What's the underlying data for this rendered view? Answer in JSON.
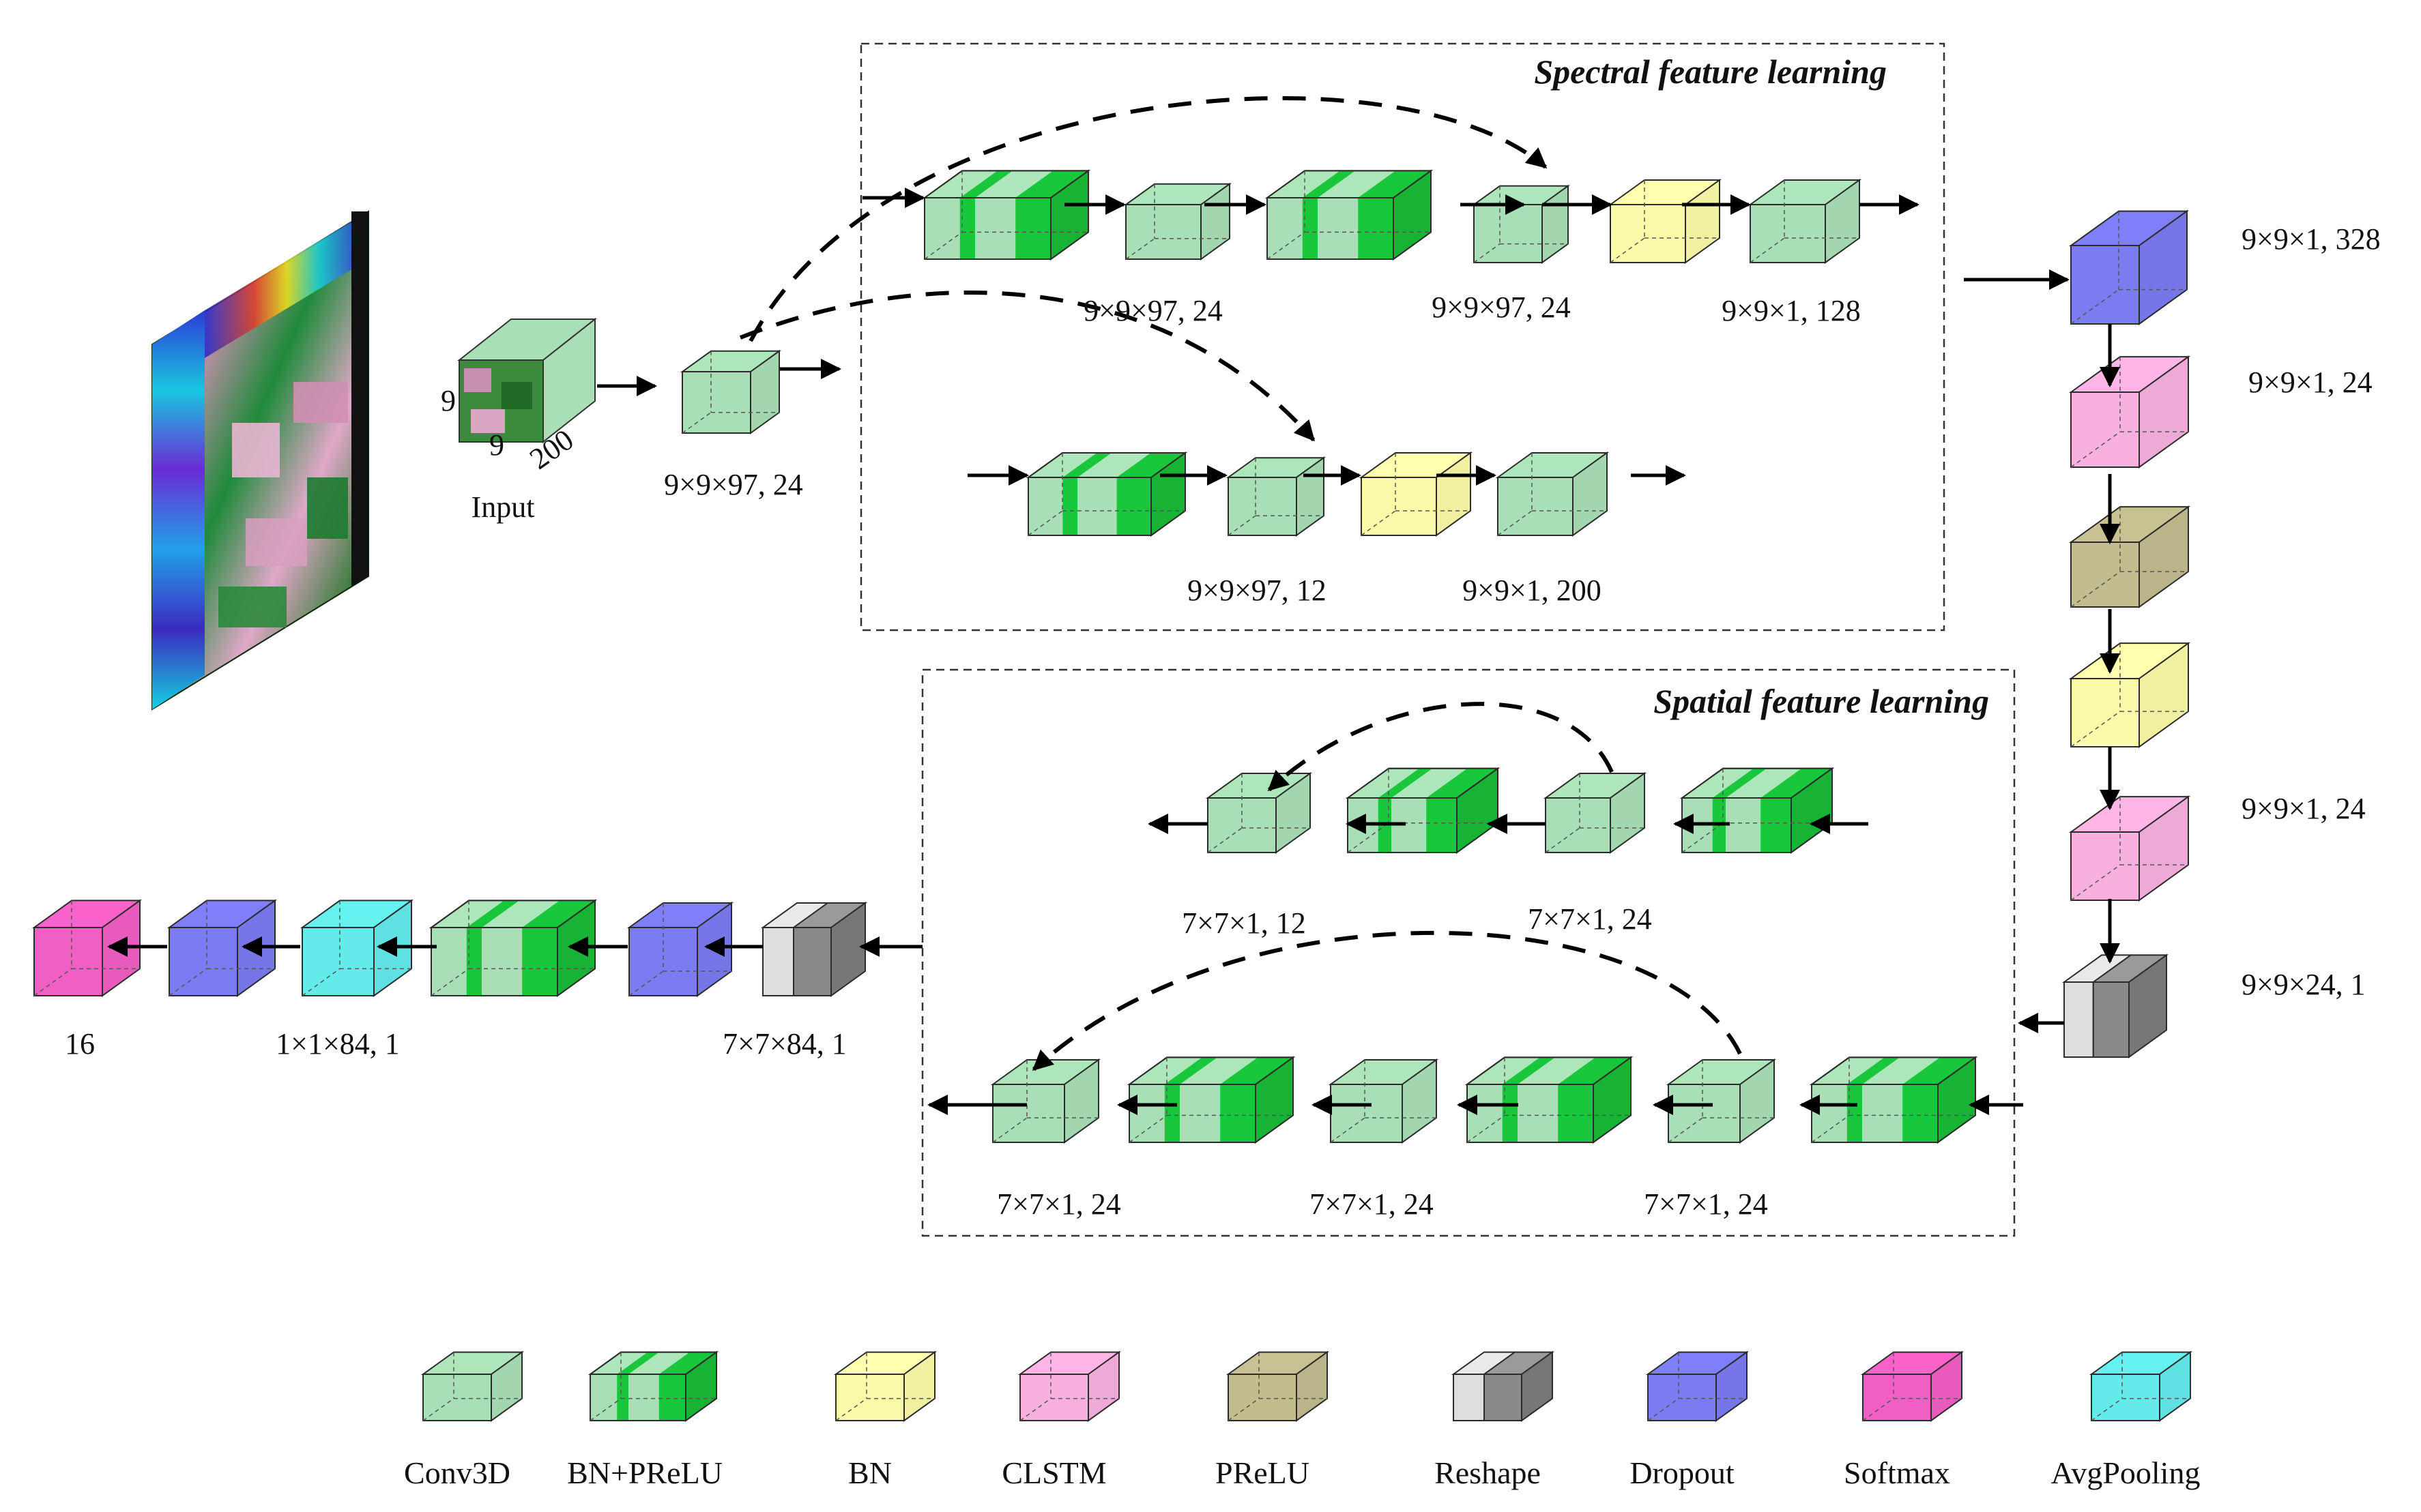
{
  "colors": {
    "conv3d": "#a8dfb6",
    "bn_prelu_dark": "#18c73a",
    "bn": "#fbfaa8",
    "clstm": "#f8b1df",
    "prelu": "#c2bc8e",
    "reshape_light": "#dedede",
    "reshape_dark": "#8a8a8a",
    "dropout": "#7b7bf2",
    "softmax": "#f25fc4",
    "avgpool": "#63eaea"
  },
  "groups": {
    "spectral_title": "Spectral feature learning",
    "spatial_title": "Spatial feature learning"
  },
  "input": {
    "label": "Input",
    "dim_height": "9",
    "dim_width": "9",
    "dim_depth": "200"
  },
  "labels": {
    "first_conv": "9×9×97, 24",
    "spec_row1_a": "9×9×97, 24",
    "spec_row1_b": "9×9×97, 24",
    "spec_row1_c": "9×9×1, 128",
    "spec_row2_a": "9×9×97, 12",
    "spec_row2_b": "9×9×1, 200",
    "right_dropout": "9×9×1, 328",
    "right_clstm1": "9×9×1, 24",
    "right_clstm2": "9×9×1, 24",
    "right_reshape": "9×9×24, 1",
    "spat_row1_a": "7×7×1, 12",
    "spat_row1_b": "7×7×1, 24",
    "spat_row2_a": "7×7×1, 24",
    "spat_row2_b": "7×7×1, 24",
    "spat_row2_c": "7×7×1, 24",
    "bottom_reshape": "7×7×84, 1",
    "bottom_avgpool": "1×1×84, 1",
    "output": "16"
  },
  "legend": [
    {
      "key": "conv3d",
      "label": "Conv3D"
    },
    {
      "key": "bnprelu",
      "label": "BN+PReLU"
    },
    {
      "key": "bn",
      "label": "BN"
    },
    {
      "key": "clstm",
      "label": "CLSTM"
    },
    {
      "key": "prelu",
      "label": "PReLU"
    },
    {
      "key": "reshape",
      "label": "Reshape"
    },
    {
      "key": "dropout",
      "label": "Dropout"
    },
    {
      "key": "softmax",
      "label": "Softmax"
    },
    {
      "key": "avgpool",
      "label": "AvgPooling"
    }
  ]
}
